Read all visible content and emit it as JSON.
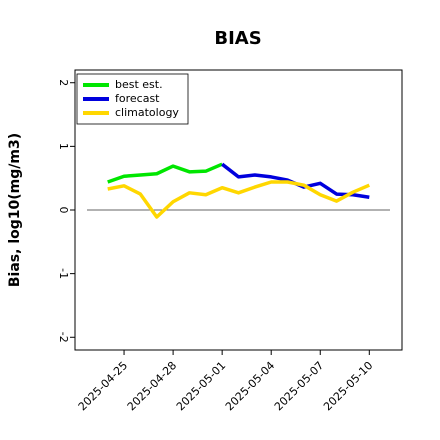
{
  "chart_data": {
    "type": "line",
    "title": "BIAS",
    "y_label": "Bias, log10(mg/m3)",
    "x": [
      "2025-04-24",
      "2025-04-25",
      "2025-04-26",
      "2025-04-27",
      "2025-04-28",
      "2025-04-29",
      "2025-04-30",
      "2025-05-01",
      "2025-05-02",
      "2025-05-03",
      "2025-05-04",
      "2025-05-05",
      "2025-05-06",
      "2025-05-07",
      "2025-05-08",
      "2025-05-09",
      "2025-05-10"
    ],
    "series": [
      {
        "name": "best est.",
        "color": "#00e600",
        "values": [
          0.44,
          0.53,
          0.55,
          0.57,
          0.69,
          0.6,
          0.61,
          0.72,
          null,
          null,
          null,
          null,
          null,
          null,
          null,
          null,
          null
        ]
      },
      {
        "name": "forecast",
        "color": "#0000dd",
        "values": [
          null,
          null,
          null,
          null,
          null,
          null,
          null,
          0.72,
          0.52,
          0.55,
          0.52,
          0.47,
          0.36,
          0.42,
          0.25,
          0.24,
          0.2
        ]
      },
      {
        "name": "climatology",
        "color": "#ffd700",
        "values": [
          0.33,
          0.38,
          0.25,
          -0.11,
          0.13,
          0.27,
          0.24,
          0.35,
          0.27,
          0.36,
          0.44,
          0.44,
          0.39,
          0.24,
          0.14,
          0.28,
          0.39
        ]
      }
    ],
    "xlim": [
      "2025-04-22",
      "2025-05-12"
    ],
    "xticks": [
      "2025-04-25",
      "2025-04-28",
      "2025-05-01",
      "2025-05-04",
      "2025-05-07",
      "2025-05-10"
    ],
    "highlight_tick_index": 2,
    "highlight_color": "#228b22",
    "ylim": [
      -2.2,
      2.2
    ],
    "yticks": [
      -2,
      -1,
      0,
      1,
      2
    ],
    "hline": 0,
    "legend": "upper left"
  }
}
